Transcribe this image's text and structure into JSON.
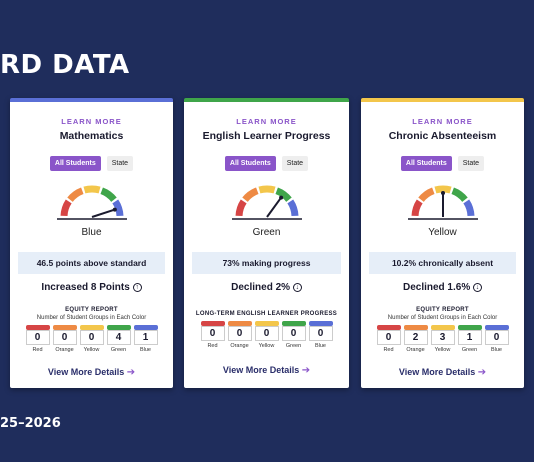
{
  "page": {
    "heading": "RD DATA",
    "year": "25–2026"
  },
  "colors": {
    "red": "#d64545",
    "orange": "#ee8a44",
    "yellow": "#f3c64b",
    "green": "#3fa54a",
    "blue": "#5a6fd6",
    "accent_purple": "#8a55c9",
    "background": "#1f2d5c"
  },
  "cards": [
    {
      "learn_more": "LEARN MORE",
      "title": "Mathematics",
      "toggle_active": "All Students",
      "toggle_other": "State",
      "color_label": "Blue",
      "gauge_level": "Blue",
      "stat": "46.5 points above standard",
      "change": "Increased 8 Points",
      "change_icon": "up-circle-icon",
      "equity_title": "EQUITY REPORT",
      "equity_subtitle": "Number of Student Groups in Each Color",
      "equity": [
        {
          "label": "Red",
          "value": "0",
          "color": "#d64545"
        },
        {
          "label": "Orange",
          "value": "0",
          "color": "#ee8a44"
        },
        {
          "label": "Yellow",
          "value": "0",
          "color": "#f3c64b"
        },
        {
          "label": "Green",
          "value": "4",
          "color": "#3fa54a"
        },
        {
          "label": "Blue",
          "value": "1",
          "color": "#5a6fd6"
        }
      ],
      "details": "View More Details",
      "top_color": "#5a6fd6"
    },
    {
      "learn_more": "LEARN MORE",
      "title": "English Learner Progress",
      "toggle_active": "All Students",
      "toggle_other": "State",
      "color_label": "Green",
      "gauge_level": "Green",
      "stat": "73% making progress",
      "change": "Declined 2%",
      "change_icon": "down-circle-icon",
      "equity_title": "LONG-TERM ENGLISH LEARNER PROGRESS",
      "equity_subtitle": "",
      "equity": [
        {
          "label": "Red",
          "value": "0",
          "color": "#d64545"
        },
        {
          "label": "Orange",
          "value": "0",
          "color": "#ee8a44"
        },
        {
          "label": "Yellow",
          "value": "0",
          "color": "#f3c64b"
        },
        {
          "label": "Green",
          "value": "0",
          "color": "#3fa54a"
        },
        {
          "label": "Blue",
          "value": "0",
          "color": "#5a6fd6"
        }
      ],
      "details": "View More Details",
      "top_color": "#3fa54a"
    },
    {
      "learn_more": "LEARN MORE",
      "title": "Chronic Absenteeism",
      "toggle_active": "All Students",
      "toggle_other": "State",
      "color_label": "Yellow",
      "gauge_level": "Yellow",
      "stat": "10.2% chronically absent",
      "change": "Declined 1.6%",
      "change_icon": "down-circle-icon",
      "equity_title": "EQUITY REPORT",
      "equity_subtitle": "Number of Student Groups in Each Color",
      "equity": [
        {
          "label": "Red",
          "value": "0",
          "color": "#d64545"
        },
        {
          "label": "Orange",
          "value": "2",
          "color": "#ee8a44"
        },
        {
          "label": "Yellow",
          "value": "3",
          "color": "#f3c64b"
        },
        {
          "label": "Green",
          "value": "1",
          "color": "#3fa54a"
        },
        {
          "label": "Blue",
          "value": "0",
          "color": "#5a6fd6"
        }
      ],
      "details": "View More Details",
      "top_color": "#f3c64b"
    }
  ]
}
